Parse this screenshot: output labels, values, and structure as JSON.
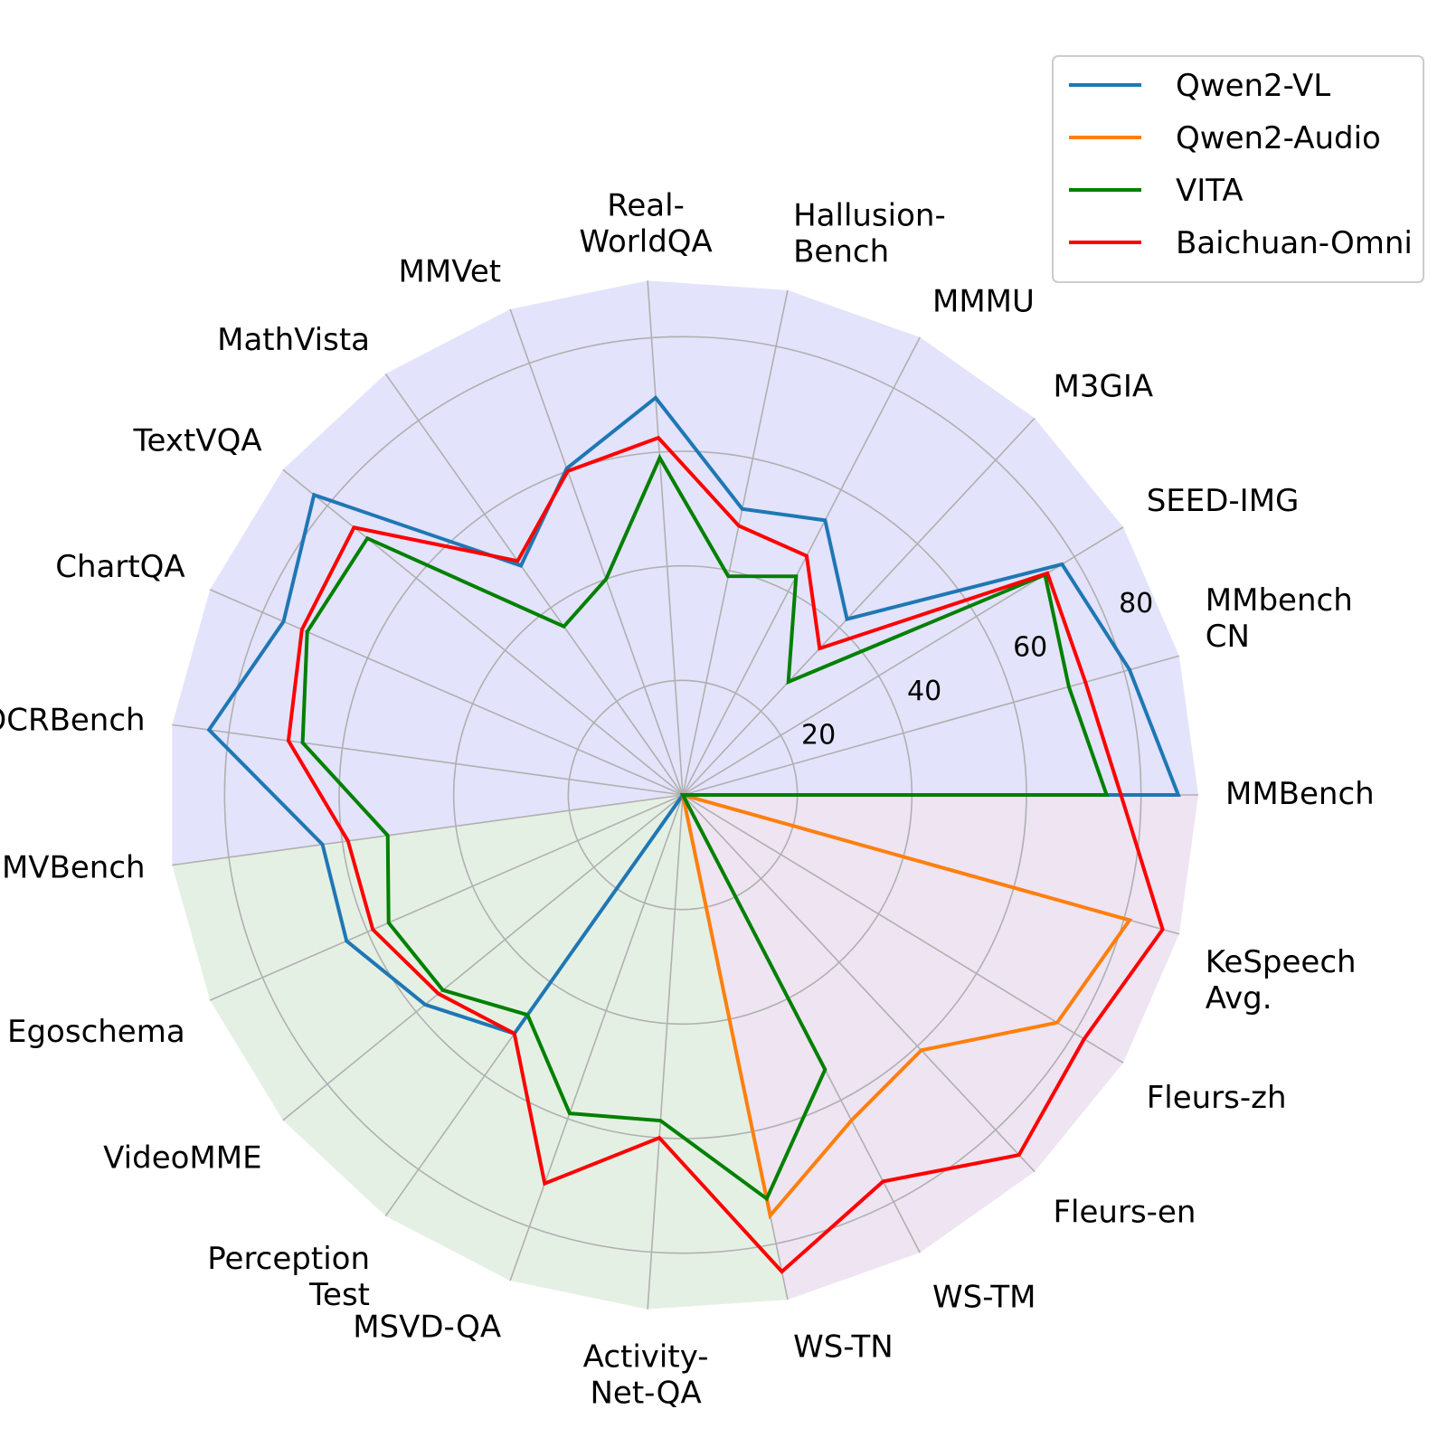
{
  "chart_data": {
    "type": "radar",
    "axes": [
      {
        "label": [
          "MMBench"
        ],
        "group": "image"
      },
      {
        "label": [
          "MMbench",
          "CN"
        ],
        "group": "image"
      },
      {
        "label": [
          "SEED-IMG"
        ],
        "group": "image"
      },
      {
        "label": [
          "M3GIA"
        ],
        "group": "image"
      },
      {
        "label": [
          "MMMU"
        ],
        "group": "image"
      },
      {
        "label": [
          "Hallusion-",
          "Bench"
        ],
        "group": "image"
      },
      {
        "label": [
          "Real-",
          "WorldQA"
        ],
        "group": "image"
      },
      {
        "label": [
          "MMVet"
        ],
        "group": "image"
      },
      {
        "label": [
          "MathVista"
        ],
        "group": "image"
      },
      {
        "label": [
          "TextVQA"
        ],
        "group": "image"
      },
      {
        "label": [
          "ChartQA"
        ],
        "group": "image"
      },
      {
        "label": [
          "OCRBench"
        ],
        "group": "image"
      },
      {
        "label": [
          "MVBench"
        ],
        "group": "video"
      },
      {
        "label": [
          "Egoschema"
        ],
        "group": "video"
      },
      {
        "label": [
          "VideoMME"
        ],
        "group": "video"
      },
      {
        "label": [
          "Perception",
          "Test"
        ],
        "group": "video"
      },
      {
        "label": [
          "MSVD-QA"
        ],
        "group": "video"
      },
      {
        "label": [
          "Activity-",
          "Net-QA"
        ],
        "group": "video"
      },
      {
        "label": [
          "WS-TN"
        ],
        "group": "audio"
      },
      {
        "label": [
          "WS-TM"
        ],
        "group": "audio"
      },
      {
        "label": [
          "Fleurs-en"
        ],
        "group": "audio"
      },
      {
        "label": [
          "Fleurs-zh"
        ],
        "group": "audio"
      },
      {
        "label": [
          "KeSpeech",
          "Avg."
        ],
        "group": "audio"
      }
    ],
    "rmax": 90,
    "rticks": [
      20,
      40,
      60,
      80
    ],
    "group_colors": {
      "image": "#e3e3fb",
      "video": "#e5f0e4",
      "audio": "#eee4f2"
    },
    "series": [
      {
        "name": "Qwen2-VL",
        "color": "#1f77b4",
        "values": [
          86.5,
          81,
          77.5,
          42,
          54,
          51,
          69.5,
          60.5,
          49,
          83,
          76,
          83.5,
          63.5,
          64,
          58,
          51,
          0,
          0,
          0,
          0,
          0,
          0,
          0
        ]
      },
      {
        "name": "Qwen2-Audio",
        "color": "#ff7f0e",
        "values": [
          0,
          0,
          0,
          0,
          0,
          0,
          0,
          0,
          0,
          0,
          0,
          0,
          0,
          0,
          0,
          0,
          0,
          0,
          75,
          64,
          61,
          76.5,
          81
        ]
      },
      {
        "name": "VITA",
        "color": "#008000",
        "values": [
          74,
          70,
          74,
          27,
          43,
          39,
          59,
          40,
          36,
          71,
          71.5,
          67,
          52,
          56,
          54,
          47,
          59,
          57,
          72,
          54,
          0,
          0,
          0
        ]
      },
      {
        "name": "Baichuan-Omni",
        "color": "#ff0000",
        "values": [
          76.5,
          73,
          74.5,
          35,
          47,
          48,
          62.5,
          60,
          50,
          74,
          72.5,
          69.5,
          59,
          59,
          55,
          51,
          72,
          60,
          85,
          76,
          86,
          82,
          87
        ]
      }
    ]
  }
}
